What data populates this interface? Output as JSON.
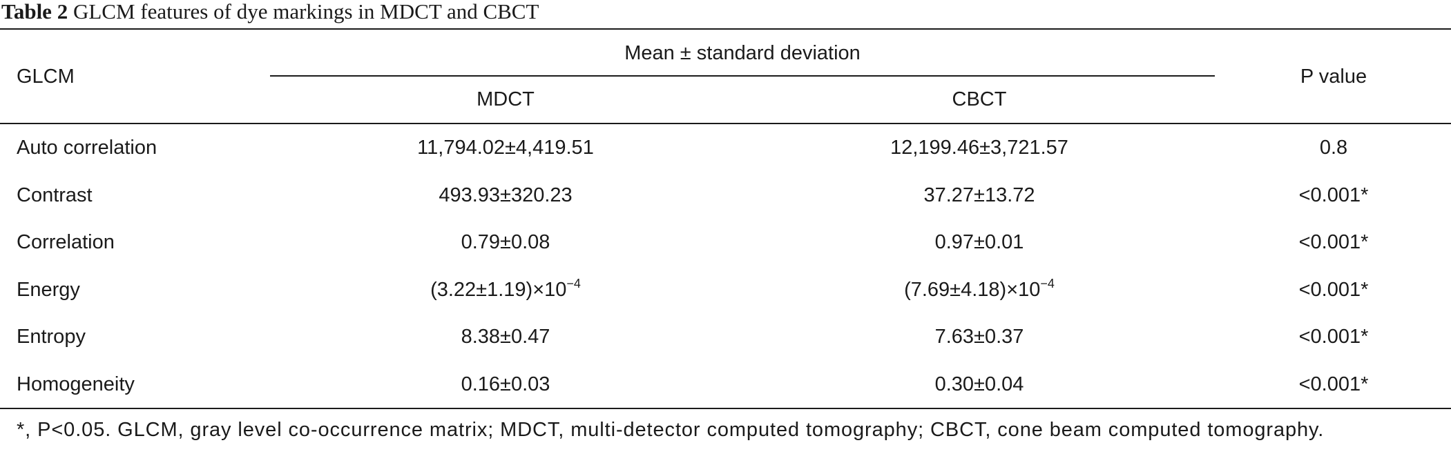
{
  "caption": {
    "label": "Table 2",
    "title": "GLCM features of dye markings in MDCT and CBCT"
  },
  "header": {
    "row_label": "GLCM",
    "group_label": "Mean ± standard deviation",
    "columns": [
      "MDCT",
      "CBCT"
    ],
    "p_label": "P value"
  },
  "rows": [
    {
      "feature": "Auto correlation",
      "mdct": "11,794.02±4,419.51",
      "cbct": "12,199.46±3,721.57",
      "p": "0.8"
    },
    {
      "feature": "Contrast",
      "mdct": "493.93±320.23",
      "cbct": "37.27±13.72",
      "p": "<0.001*"
    },
    {
      "feature": "Correlation",
      "mdct": "0.79±0.08",
      "cbct": "0.97±0.01",
      "p": "<0.001*"
    },
    {
      "feature": "Energy",
      "mdct": "(3.22±1.19)×10",
      "mdct_exp": "−4",
      "cbct": "(7.69±4.18)×10",
      "cbct_exp": "−4",
      "p": "<0.001*"
    },
    {
      "feature": "Entropy",
      "mdct": "8.38±0.47",
      "cbct": "7.63±0.37",
      "p": "<0.001*"
    },
    {
      "feature": "Homogeneity",
      "mdct": "0.16±0.03",
      "cbct": "0.30±0.04",
      "p": "<0.001*"
    }
  ],
  "footnote": "*, P<0.05. GLCM, gray level co-occurrence matrix; MDCT, multi-detector computed tomography; CBCT, cone beam computed tomography."
}
